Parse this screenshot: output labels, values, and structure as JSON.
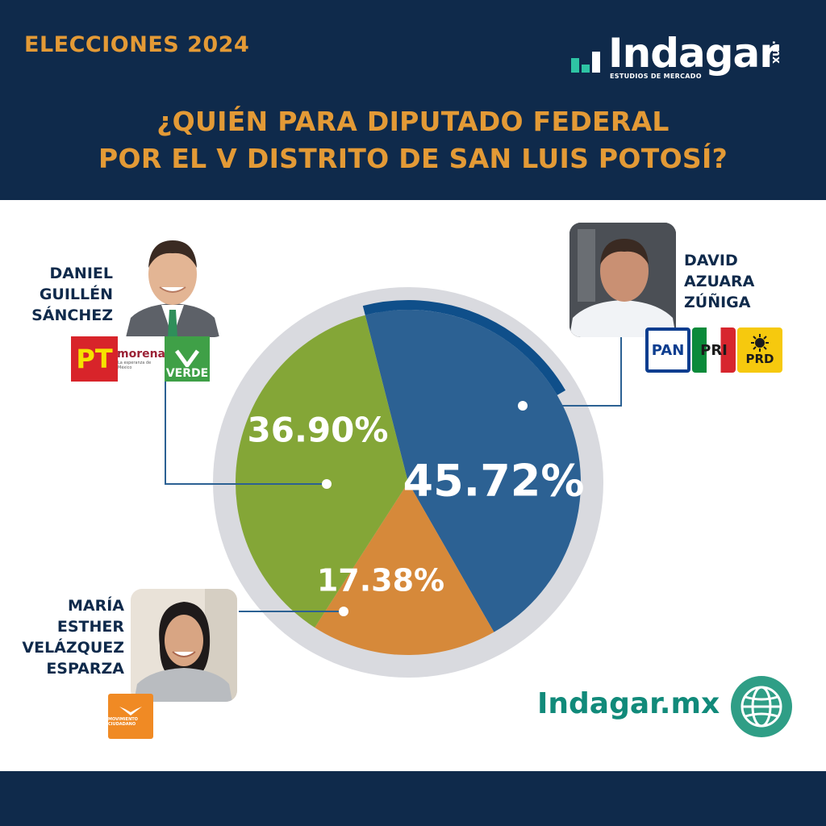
{
  "header": {
    "elecciones": "ELECCIONES 2024",
    "brand_name": "Indagar",
    "brand_mx": ".mx",
    "brand_sub": "ESTUDIOS DE MERCADO",
    "title_line1": "¿QUIÉN PARA DIPUTADO FEDERAL",
    "title_line2": "POR EL V DISTRITO DE SAN LUIS POTOSÍ?"
  },
  "candidates": {
    "daniel": {
      "line1": "DANIEL",
      "line2": "GUILLÉN",
      "line3": "SÁNCHEZ",
      "logos": [
        "PT",
        "morena",
        "La esperanza de México",
        "VERDE"
      ]
    },
    "david": {
      "line1": "DAVID",
      "line2": "AZUARA",
      "line3": "ZÚÑIGA",
      "logos": [
        "PAN",
        "PRI",
        "PRD"
      ]
    },
    "maria": {
      "line1": "MARÍA",
      "line2": "ESTHER",
      "line3": "VELÁZQUEZ",
      "line4": "ESPARZA",
      "logos": [
        "MOVIMIENTO CIUDADANO"
      ]
    }
  },
  "footer": {
    "site": "Indagar.mx"
  },
  "chart_data": {
    "type": "pie",
    "title": "",
    "slices": [
      {
        "label": "DAVID AZUARA ZÚÑIGA",
        "value": 45.72,
        "display": "45.72%",
        "color": "#2c6193"
      },
      {
        "label": "MARÍA ESTHER VELÁZQUEZ ESPARZA",
        "value": 17.38,
        "display": "17.38%",
        "color": "#d6893a"
      },
      {
        "label": "DANIEL GUILLÉN SÁNCHEZ",
        "value": 36.9,
        "display": "36.90%",
        "color": "#84a637"
      }
    ]
  }
}
